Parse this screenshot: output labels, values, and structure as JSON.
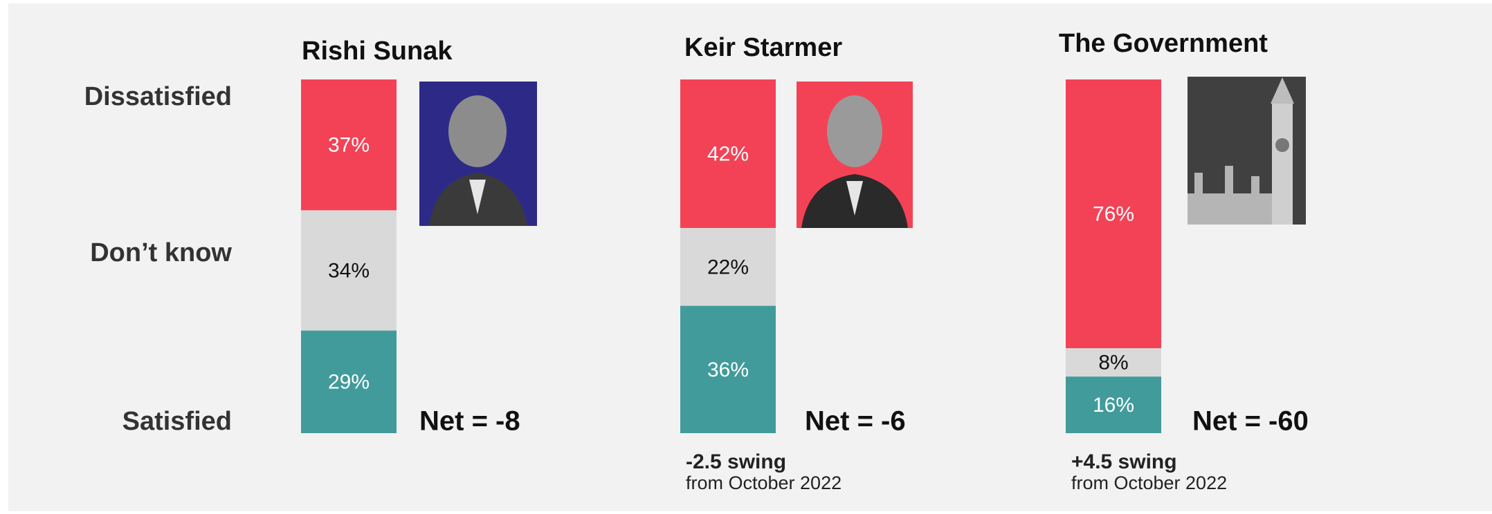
{
  "chart_data": [
    {
      "type": "stacked_bar",
      "title": "Rishi Sunak",
      "series": [
        {
          "name": "Dissatisfied",
          "color": "#f34256",
          "values": [
            37
          ],
          "value_labels": [
            "37%"
          ]
        },
        {
          "name": "Don’t know",
          "color": "#d9d9d9",
          "values": [
            34
          ],
          "value_labels": [
            "34%"
          ]
        },
        {
          "name": "Satisfied",
          "color": "#429b9b",
          "values": [
            29
          ],
          "value_labels": [
            "29%"
          ]
        }
      ],
      "annotation": "Net = -8"
    },
    {
      "type": "stacked_bar",
      "title": "Keir Starmer",
      "series": [
        {
          "color": "#f34256",
          "values": [
            42
          ],
          "value_labels": [
            "42%"
          ]
        },
        {
          "color": "#d9d9d9",
          "values": [
            22
          ],
          "value_labels": [
            "22%"
          ]
        },
        {
          "color": "#429b9b",
          "values": [
            36
          ],
          "value_labels": [
            "36%"
          ]
        }
      ],
      "annotation": "Net = -6",
      "swing": "-2.5 swing",
      "swing_note": "from October 2022"
    },
    {
      "type": "stacked_bar",
      "title": "The Government",
      "series": [
        {
          "color": "#f34256",
          "values": [
            76
          ],
          "value_labels": [
            "76%"
          ]
        },
        {
          "color": "#d9d9d9",
          "values": [
            8
          ],
          "value_labels": [
            "8%"
          ]
        },
        {
          "color": "#429b9b",
          "values": [
            16
          ],
          "value_labels": [
            "16%"
          ]
        }
      ],
      "annotation": "Net = -60",
      "swing": "+4.5 swing",
      "swing_note": "from October 2022"
    }
  ]
}
